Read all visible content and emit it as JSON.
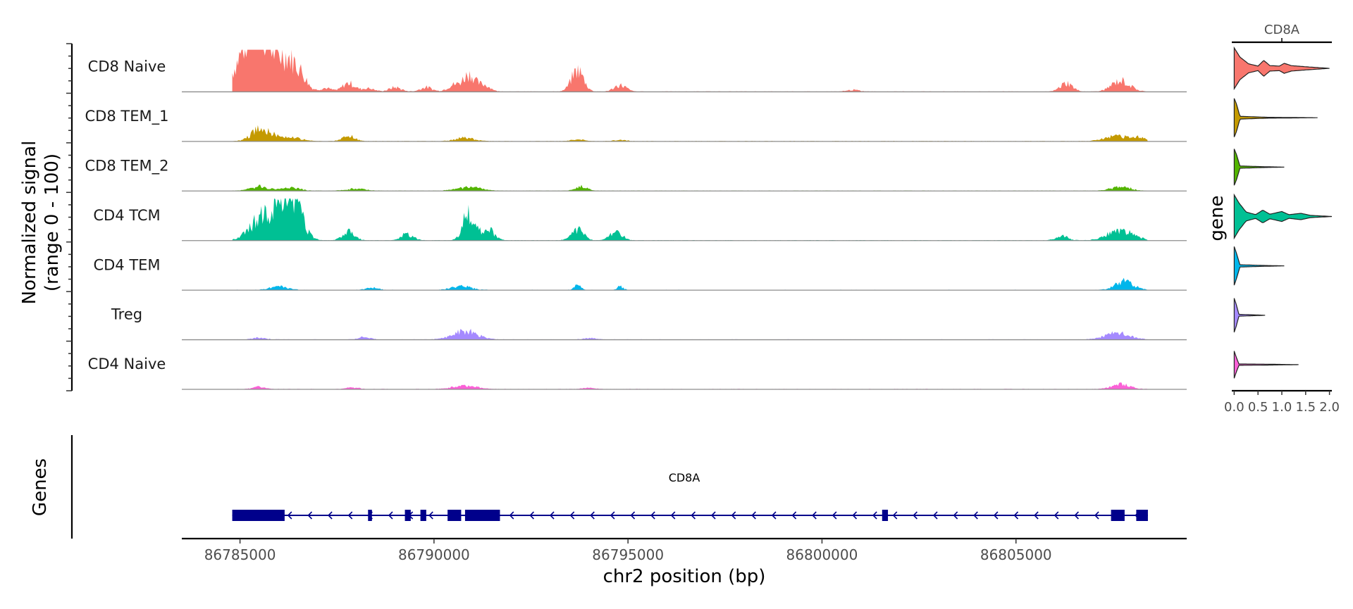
{
  "chart_data": [
    {
      "type": "area",
      "name": "coverage",
      "ylabel_line1": "Normalized signal",
      "ylabel_line2": "(range 0 - 100)",
      "xlabel": "chr2 position (bp)",
      "xlim": [
        86783500,
        86809400
      ],
      "ylim": [
        0,
        100
      ],
      "region_start": 86784800,
      "region_end": 86808400,
      "xticks": [
        86785000,
        86790000,
        86795000,
        86800000,
        86805000
      ],
      "xtick_labels": [
        "86785000",
        "86790000",
        "86795000",
        "86800000",
        "86805000"
      ],
      "tracks": [
        {
          "name": "CD8 Naive",
          "color": "#F8766D",
          "peaks": [
            [
              86785200,
              4,
              100
            ],
            [
              86785550,
              3,
              100
            ],
            [
              86786000,
              3,
              45
            ],
            [
              86786300,
              3,
              55
            ],
            [
              86786600,
              2,
              20
            ],
            [
              86787200,
              2,
              8
            ],
            [
              86787800,
              2,
              20
            ],
            [
              86788300,
              2,
              8
            ],
            [
              86789000,
              2,
              10
            ],
            [
              86789800,
              2,
              10
            ],
            [
              86790500,
              2,
              15
            ],
            [
              86790900,
              2,
              40
            ],
            [
              86791300,
              2,
              15
            ],
            [
              86793700,
              2,
              50
            ],
            [
              86794800,
              2,
              15
            ],
            [
              86800800,
              2,
              4
            ],
            [
              86806300,
              2,
              20
            ],
            [
              86807700,
              3,
              25
            ]
          ]
        },
        {
          "name": "CD8 TEM_1",
          "color": "#C49A00",
          "peaks": [
            [
              86785550,
              3,
              30
            ],
            [
              86786200,
              4,
              10
            ],
            [
              86787800,
              2,
              12
            ],
            [
              86790800,
              3,
              8
            ],
            [
              86793700,
              2,
              4
            ],
            [
              86794800,
              2,
              3
            ],
            [
              86807600,
              4,
              12
            ],
            [
              86808200,
              2,
              8
            ]
          ]
        },
        {
          "name": "CD8 TEM_2",
          "color": "#53B400",
          "peaks": [
            [
              86785500,
              3,
              10
            ],
            [
              86786300,
              3,
              8
            ],
            [
              86788000,
              3,
              5
            ],
            [
              86790900,
              4,
              8
            ],
            [
              86793800,
              2,
              10
            ],
            [
              86807700,
              3,
              10
            ]
          ]
        },
        {
          "name": "CD4 TCM",
          "color": "#00C094",
          "peaks": [
            [
              86785600,
              4,
              55
            ],
            [
              86786200,
              3,
              70
            ],
            [
              86786400,
              3,
              60
            ],
            [
              86787800,
              2,
              20
            ],
            [
              86789300,
              2,
              15
            ],
            [
              86790900,
              2,
              65
            ],
            [
              86791400,
              2,
              25
            ],
            [
              86793700,
              2,
              25
            ],
            [
              86794700,
              2,
              20
            ],
            [
              86806200,
              2,
              10
            ],
            [
              86807700,
              4,
              25
            ]
          ]
        },
        {
          "name": "CD4 TEM",
          "color": "#00B6EB",
          "peaks": [
            [
              86786000,
              3,
              8
            ],
            [
              86788400,
              2,
              6
            ],
            [
              86790700,
              3,
              10
            ],
            [
              86793700,
              1,
              15
            ],
            [
              86794800,
              1,
              8
            ],
            [
              86807800,
              3,
              20
            ]
          ]
        },
        {
          "name": "Treg",
          "color": "#A58AFF",
          "peaks": [
            [
              86785500,
              2,
              5
            ],
            [
              86788200,
              2,
              6
            ],
            [
              86790800,
              4,
              20
            ],
            [
              86794000,
              2,
              4
            ],
            [
              86807600,
              4,
              15
            ]
          ]
        },
        {
          "name": "CD4 Naive",
          "color": "#FB61D7",
          "peaks": [
            [
              86785500,
              2,
              5
            ],
            [
              86787900,
              2,
              4
            ],
            [
              86790800,
              4,
              8
            ],
            [
              86794000,
              2,
              3
            ],
            [
              86807700,
              3,
              12
            ]
          ]
        }
      ]
    },
    {
      "type": "gene-track",
      "ylabel": "Genes",
      "gene_name": "CD8A",
      "strand": "-",
      "color": "#00008B",
      "line_start": 86784800,
      "line_end": 86808400,
      "exons": [
        [
          86784800,
          86786150
        ],
        [
          86788300,
          86788400
        ],
        [
          86789250,
          86789400
        ],
        [
          86789650,
          86789800
        ],
        [
          86790350,
          86790700
        ],
        [
          86790800,
          86791700
        ],
        [
          86801550,
          86801700
        ],
        [
          86807450,
          86807800
        ],
        [
          86808100,
          86808400
        ]
      ]
    },
    {
      "type": "violin",
      "title": "CD8A",
      "ylabel": "gene",
      "xlim": [
        -0.05,
        2.05
      ],
      "xticks": [
        0.0,
        0.5,
        1.0,
        1.5,
        2.0
      ],
      "xtick_labels": [
        "0.0",
        "0.5",
        "1.0",
        "1.5",
        "2.0"
      ],
      "groups": [
        {
          "name": "CD8 Naive",
          "color": "#F8766D",
          "max": 2.0,
          "profile": [
            [
              0,
              0.9
            ],
            [
              0.12,
              0.5
            ],
            [
              0.3,
              0.2
            ],
            [
              0.5,
              0.1
            ],
            [
              0.62,
              0.35
            ],
            [
              0.75,
              0.12
            ],
            [
              0.95,
              0.1
            ],
            [
              1.05,
              0.22
            ],
            [
              1.2,
              0.12
            ],
            [
              1.5,
              0.07
            ],
            [
              2.0,
              0.0
            ]
          ]
        },
        {
          "name": "CD8 TEM_1",
          "color": "#C49A00",
          "max": 1.75,
          "profile": [
            [
              0,
              0.85
            ],
            [
              0.05,
              0.6
            ],
            [
              0.12,
              0.06
            ],
            [
              0.7,
              0.02
            ],
            [
              1.75,
              0.0
            ]
          ]
        },
        {
          "name": "CD8 TEM_2",
          "color": "#53B400",
          "max": 1.05,
          "profile": [
            [
              0,
              0.8
            ],
            [
              0.05,
              0.55
            ],
            [
              0.12,
              0.05
            ],
            [
              0.6,
              0.02
            ],
            [
              1.05,
              0.0
            ]
          ]
        },
        {
          "name": "CD4 TCM",
          "color": "#00C094",
          "max": 2.05,
          "profile": [
            [
              0,
              0.95
            ],
            [
              0.1,
              0.6
            ],
            [
              0.25,
              0.2
            ],
            [
              0.45,
              0.08
            ],
            [
              0.6,
              0.28
            ],
            [
              0.75,
              0.1
            ],
            [
              1.0,
              0.22
            ],
            [
              1.15,
              0.08
            ],
            [
              1.4,
              0.14
            ],
            [
              1.6,
              0.05
            ],
            [
              2.05,
              0.0
            ]
          ]
        },
        {
          "name": "CD4 TEM",
          "color": "#00B6EB",
          "max": 1.05,
          "profile": [
            [
              0,
              0.85
            ],
            [
              0.05,
              0.55
            ],
            [
              0.12,
              0.05
            ],
            [
              0.6,
              0.02
            ],
            [
              1.05,
              0.0
            ]
          ]
        },
        {
          "name": "Treg",
          "color": "#A58AFF",
          "max": 0.65,
          "profile": [
            [
              0,
              0.75
            ],
            [
              0.04,
              0.5
            ],
            [
              0.1,
              0.04
            ],
            [
              0.4,
              0.02
            ],
            [
              0.65,
              0.0
            ]
          ]
        },
        {
          "name": "CD4 Naive",
          "color": "#FB61D7",
          "max": 1.35,
          "profile": [
            [
              0,
              0.6
            ],
            [
              0.04,
              0.35
            ],
            [
              0.1,
              0.03
            ],
            [
              0.7,
              0.02
            ],
            [
              1.35,
              0.0
            ]
          ]
        }
      ]
    }
  ]
}
